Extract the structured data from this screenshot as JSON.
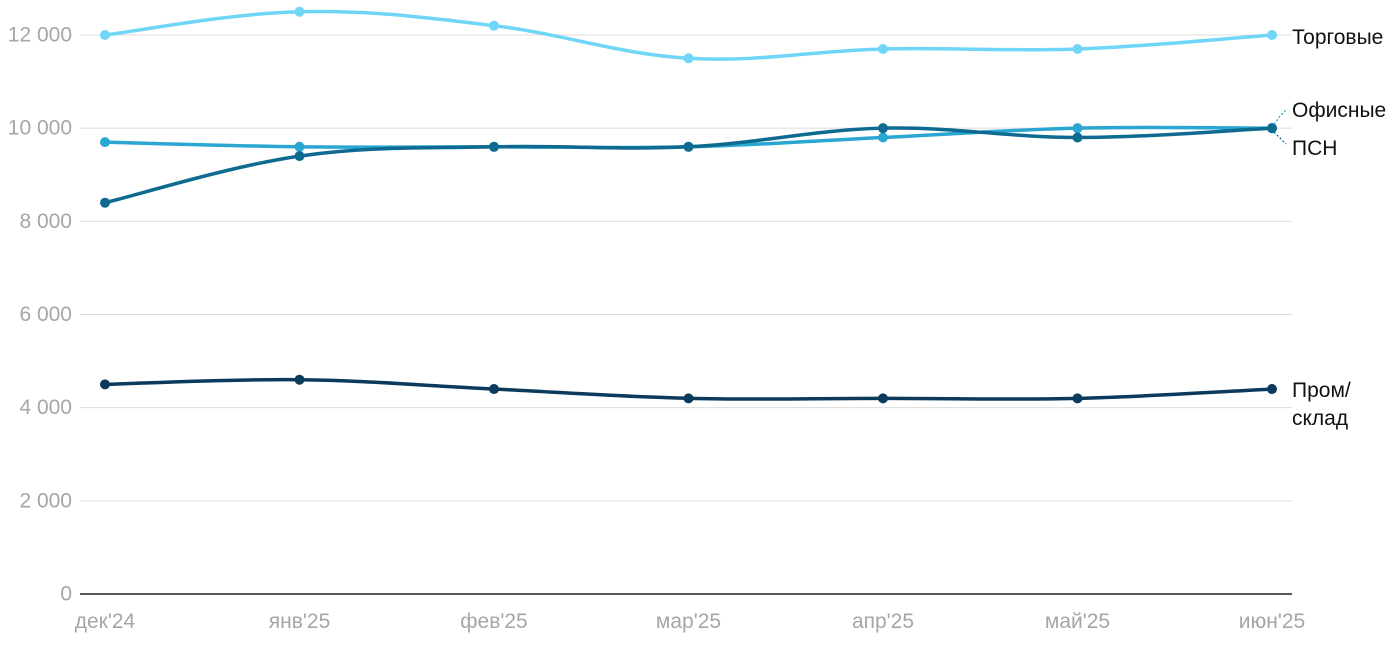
{
  "chart_data": {
    "type": "line",
    "title": "",
    "xlabel": "",
    "ylabel": "",
    "categories": [
      "дек'24",
      "янв'25",
      "фев'25",
      "мар'25",
      "апр'25",
      "май'25",
      "июн'25"
    ],
    "ylim": [
      0,
      12000
    ],
    "yticks": [
      0,
      2000,
      4000,
      6000,
      8000,
      10000,
      12000
    ],
    "ytick_labels": [
      "0",
      "2 000",
      "4 000",
      "6 000",
      "8 000",
      "10 000",
      "12 000"
    ],
    "grid": true,
    "legend": "direct labels at right end of lines",
    "series": [
      {
        "name": "Торговые",
        "label_lines": [
          "Торговые"
        ],
        "color": "#6fd6f7",
        "values": [
          12000,
          12500,
          12200,
          11500,
          11700,
          11700,
          12000
        ]
      },
      {
        "name": "Офисные",
        "label_lines": [
          "Офисные"
        ],
        "color": "#2aa6d2",
        "values": [
          9700,
          9600,
          9600,
          9600,
          9800,
          10000,
          10000
        ]
      },
      {
        "name": "ПСН",
        "label_lines": [
          "ПСН"
        ],
        "color": "#0e6a90",
        "values": [
          8400,
          9400,
          9600,
          9600,
          10000,
          9800,
          10000
        ]
      },
      {
        "name": "Пром/склад",
        "label_lines": [
          "Пром/",
          "склад"
        ],
        "color": "#0b3a5c",
        "values": [
          4500,
          4600,
          4400,
          4200,
          4200,
          4200,
          4400
        ]
      }
    ]
  }
}
